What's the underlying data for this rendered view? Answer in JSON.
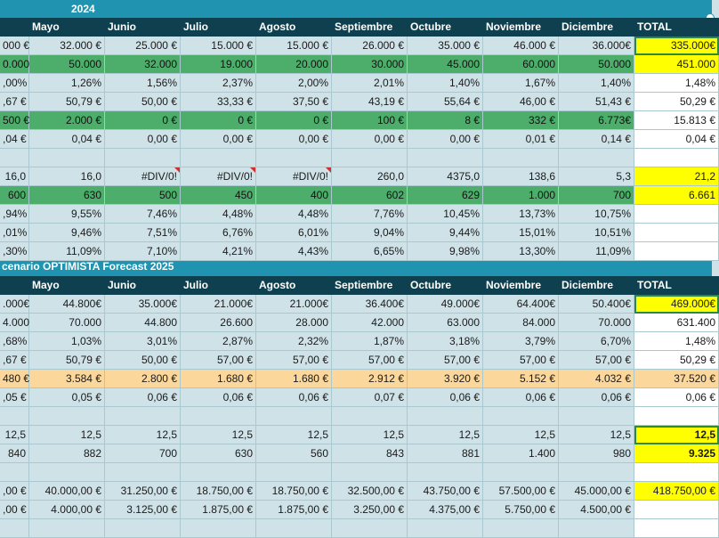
{
  "title1": "2024",
  "title2": "cenario OPTIMISTA Forecast 2025",
  "headers": [
    "",
    "Mayo",
    "Junio",
    "Julio",
    "Agosto",
    "Septiembre",
    "Octubre",
    "Noviembre",
    "Diciembre",
    "TOTAL"
  ],
  "colors": {
    "green": "#4cae6a",
    "dark": "#0f4050",
    "title": "#1f93b0",
    "yellow": "#ffff00",
    "peach": "#fbd79b",
    "light": "#cfe2e8"
  },
  "section1": [
    {
      "style": "light",
      "values": [
        "000 €",
        "32.000 €",
        "25.000 €",
        "15.000 €",
        "15.000 €",
        "26.000 €",
        "35.000 €",
        "46.000 €",
        "36.000€",
        "335.000€"
      ],
      "total_style": "yellow-sel"
    },
    {
      "style": "green",
      "values": [
        "0.000",
        "50.000",
        "32.000",
        "19.000",
        "20.000",
        "30.000",
        "45.000",
        "60.000",
        "50.000",
        "451.000"
      ],
      "total_style": "yellow"
    },
    {
      "style": "light",
      "values": [
        ",00%",
        "1,26%",
        "1,56%",
        "2,37%",
        "2,00%",
        "2,01%",
        "1,40%",
        "1,67%",
        "1,40%",
        "1,48%"
      ],
      "total_style": "white"
    },
    {
      "style": "light",
      "values": [
        ",67 €",
        "50,79 €",
        "50,00 €",
        "33,33 €",
        "37,50 €",
        "43,19 €",
        "55,64 €",
        "46,00 €",
        "51,43 €",
        "50,29 €"
      ],
      "total_style": "white"
    },
    {
      "style": "green",
      "values": [
        "500 €",
        "2.000 €",
        "0 €",
        "0 €",
        "0 €",
        "100 €",
        "8 €",
        "332 €",
        "6.773€",
        "15.813 €"
      ],
      "total_style": "white"
    },
    {
      "style": "light",
      "values": [
        ",04 €",
        "0,04 €",
        "0,00 €",
        "0,00 €",
        "0,00 €",
        "0,00 €",
        "0,00 €",
        "0,01 €",
        "0,14 €",
        "0,04 €"
      ],
      "total_style": "white"
    },
    {
      "style": "light",
      "values": [
        "",
        "",
        "",
        "",
        "",
        "",
        "",
        "",
        "",
        ""
      ],
      "total_style": "white"
    },
    {
      "style": "light",
      "values": [
        "16,0",
        "16,0",
        "#DIV/0!",
        "#DIV/0!",
        "#DIV/0!",
        "260,0",
        "4375,0",
        "138,6",
        "5,3",
        "21,2"
      ],
      "flags": [
        2,
        3,
        4
      ],
      "total_style": "yellow"
    },
    {
      "style": "green",
      "values": [
        "600",
        "630",
        "500",
        "450",
        "400",
        "602",
        "629",
        "1.000",
        "700",
        "6.661"
      ],
      "total_style": "yellow"
    },
    {
      "style": "light",
      "values": [
        ",94%",
        "9,55%",
        "7,46%",
        "4,48%",
        "4,48%",
        "7,76%",
        "10,45%",
        "13,73%",
        "10,75%",
        ""
      ],
      "total_style": "white"
    },
    {
      "style": "light",
      "values": [
        ",01%",
        "9,46%",
        "7,51%",
        "6,76%",
        "6,01%",
        "9,04%",
        "9,44%",
        "15,01%",
        "10,51%",
        ""
      ],
      "total_style": "white"
    },
    {
      "style": "light",
      "values": [
        ",30%",
        "11,09%",
        "7,10%",
        "4,21%",
        "4,43%",
        "6,65%",
        "9,98%",
        "13,30%",
        "11,09%",
        ""
      ],
      "total_style": "white"
    }
  ],
  "section2": [
    {
      "style": "light",
      "values": [
        ".000€",
        "44.800€",
        "35.000€",
        "21.000€",
        "21.000€",
        "36.400€",
        "49.000€",
        "64.400€",
        "50.400€",
        "469.000€"
      ],
      "total_style": "yellow-sel"
    },
    {
      "style": "light",
      "values": [
        "4.000",
        "70.000",
        "44.800",
        "26.600",
        "28.000",
        "42.000",
        "63.000",
        "84.000",
        "70.000",
        "631.400"
      ],
      "total_style": "white"
    },
    {
      "style": "light",
      "values": [
        ",68%",
        "1,03%",
        "3,01%",
        "2,87%",
        "2,32%",
        "1,87%",
        "3,18%",
        "3,79%",
        "6,70%",
        "1,48%"
      ],
      "total_style": "white"
    },
    {
      "style": "light",
      "values": [
        ",67 €",
        "50,79 €",
        "50,00 €",
        "57,00 €",
        "57,00 €",
        "57,00 €",
        "57,00 €",
        "57,00 €",
        "57,00 €",
        "50,29 €"
      ],
      "total_style": "white"
    },
    {
      "style": "peach",
      "values": [
        "480 €",
        "3.584 €",
        "2.800 €",
        "1.680 €",
        "1.680 €",
        "2.912 €",
        "3.920 €",
        "5.152 €",
        "4.032 €",
        "37.520 €"
      ],
      "total_style": "peach"
    },
    {
      "style": "light",
      "values": [
        ",05 €",
        "0,05 €",
        "0,06 €",
        "0,06 €",
        "0,06 €",
        "0,07 €",
        "0,06 €",
        "0,06 €",
        "0,06 €",
        "0,06 €"
      ],
      "total_style": "white"
    },
    {
      "style": "light",
      "values": [
        "",
        "",
        "",
        "",
        "",
        "",
        "",
        "",
        "",
        ""
      ],
      "total_style": "white"
    },
    {
      "style": "light",
      "values": [
        "12,5",
        "12,5",
        "12,5",
        "12,5",
        "12,5",
        "12,5",
        "12,5",
        "12,5",
        "12,5",
        "12,5"
      ],
      "total_style": "yellow-sel",
      "total_bold": true
    },
    {
      "style": "light",
      "values": [
        "840",
        "882",
        "700",
        "630",
        "560",
        "843",
        "881",
        "1.400",
        "980",
        "9.325"
      ],
      "total_style": "yellow",
      "total_bold": true
    },
    {
      "style": "light",
      "values": [
        "",
        "",
        "",
        "",
        "",
        "",
        "",
        "",
        "",
        ""
      ],
      "total_style": "white"
    },
    {
      "style": "light",
      "values": [
        ",00 €",
        "40.000,00 €",
        "31.250,00 €",
        "18.750,00 €",
        "18.750,00 €",
        "32.500,00 €",
        "43.750,00 €",
        "57.500,00 €",
        "45.000,00 €",
        "418.750,00 €"
      ],
      "total_style": "yellow"
    },
    {
      "style": "light",
      "values": [
        ",00 €",
        "4.000,00 €",
        "3.125,00 €",
        "1.875,00 €",
        "1.875,00 €",
        "3.250,00 €",
        "4.375,00 €",
        "5.750,00 €",
        "4.500,00 €",
        ""
      ],
      "total_style": "white"
    },
    {
      "style": "light",
      "values": [
        "",
        "",
        "",
        "",
        "",
        "",
        "",
        "",
        "",
        ""
      ],
      "total_style": "white"
    }
  ]
}
